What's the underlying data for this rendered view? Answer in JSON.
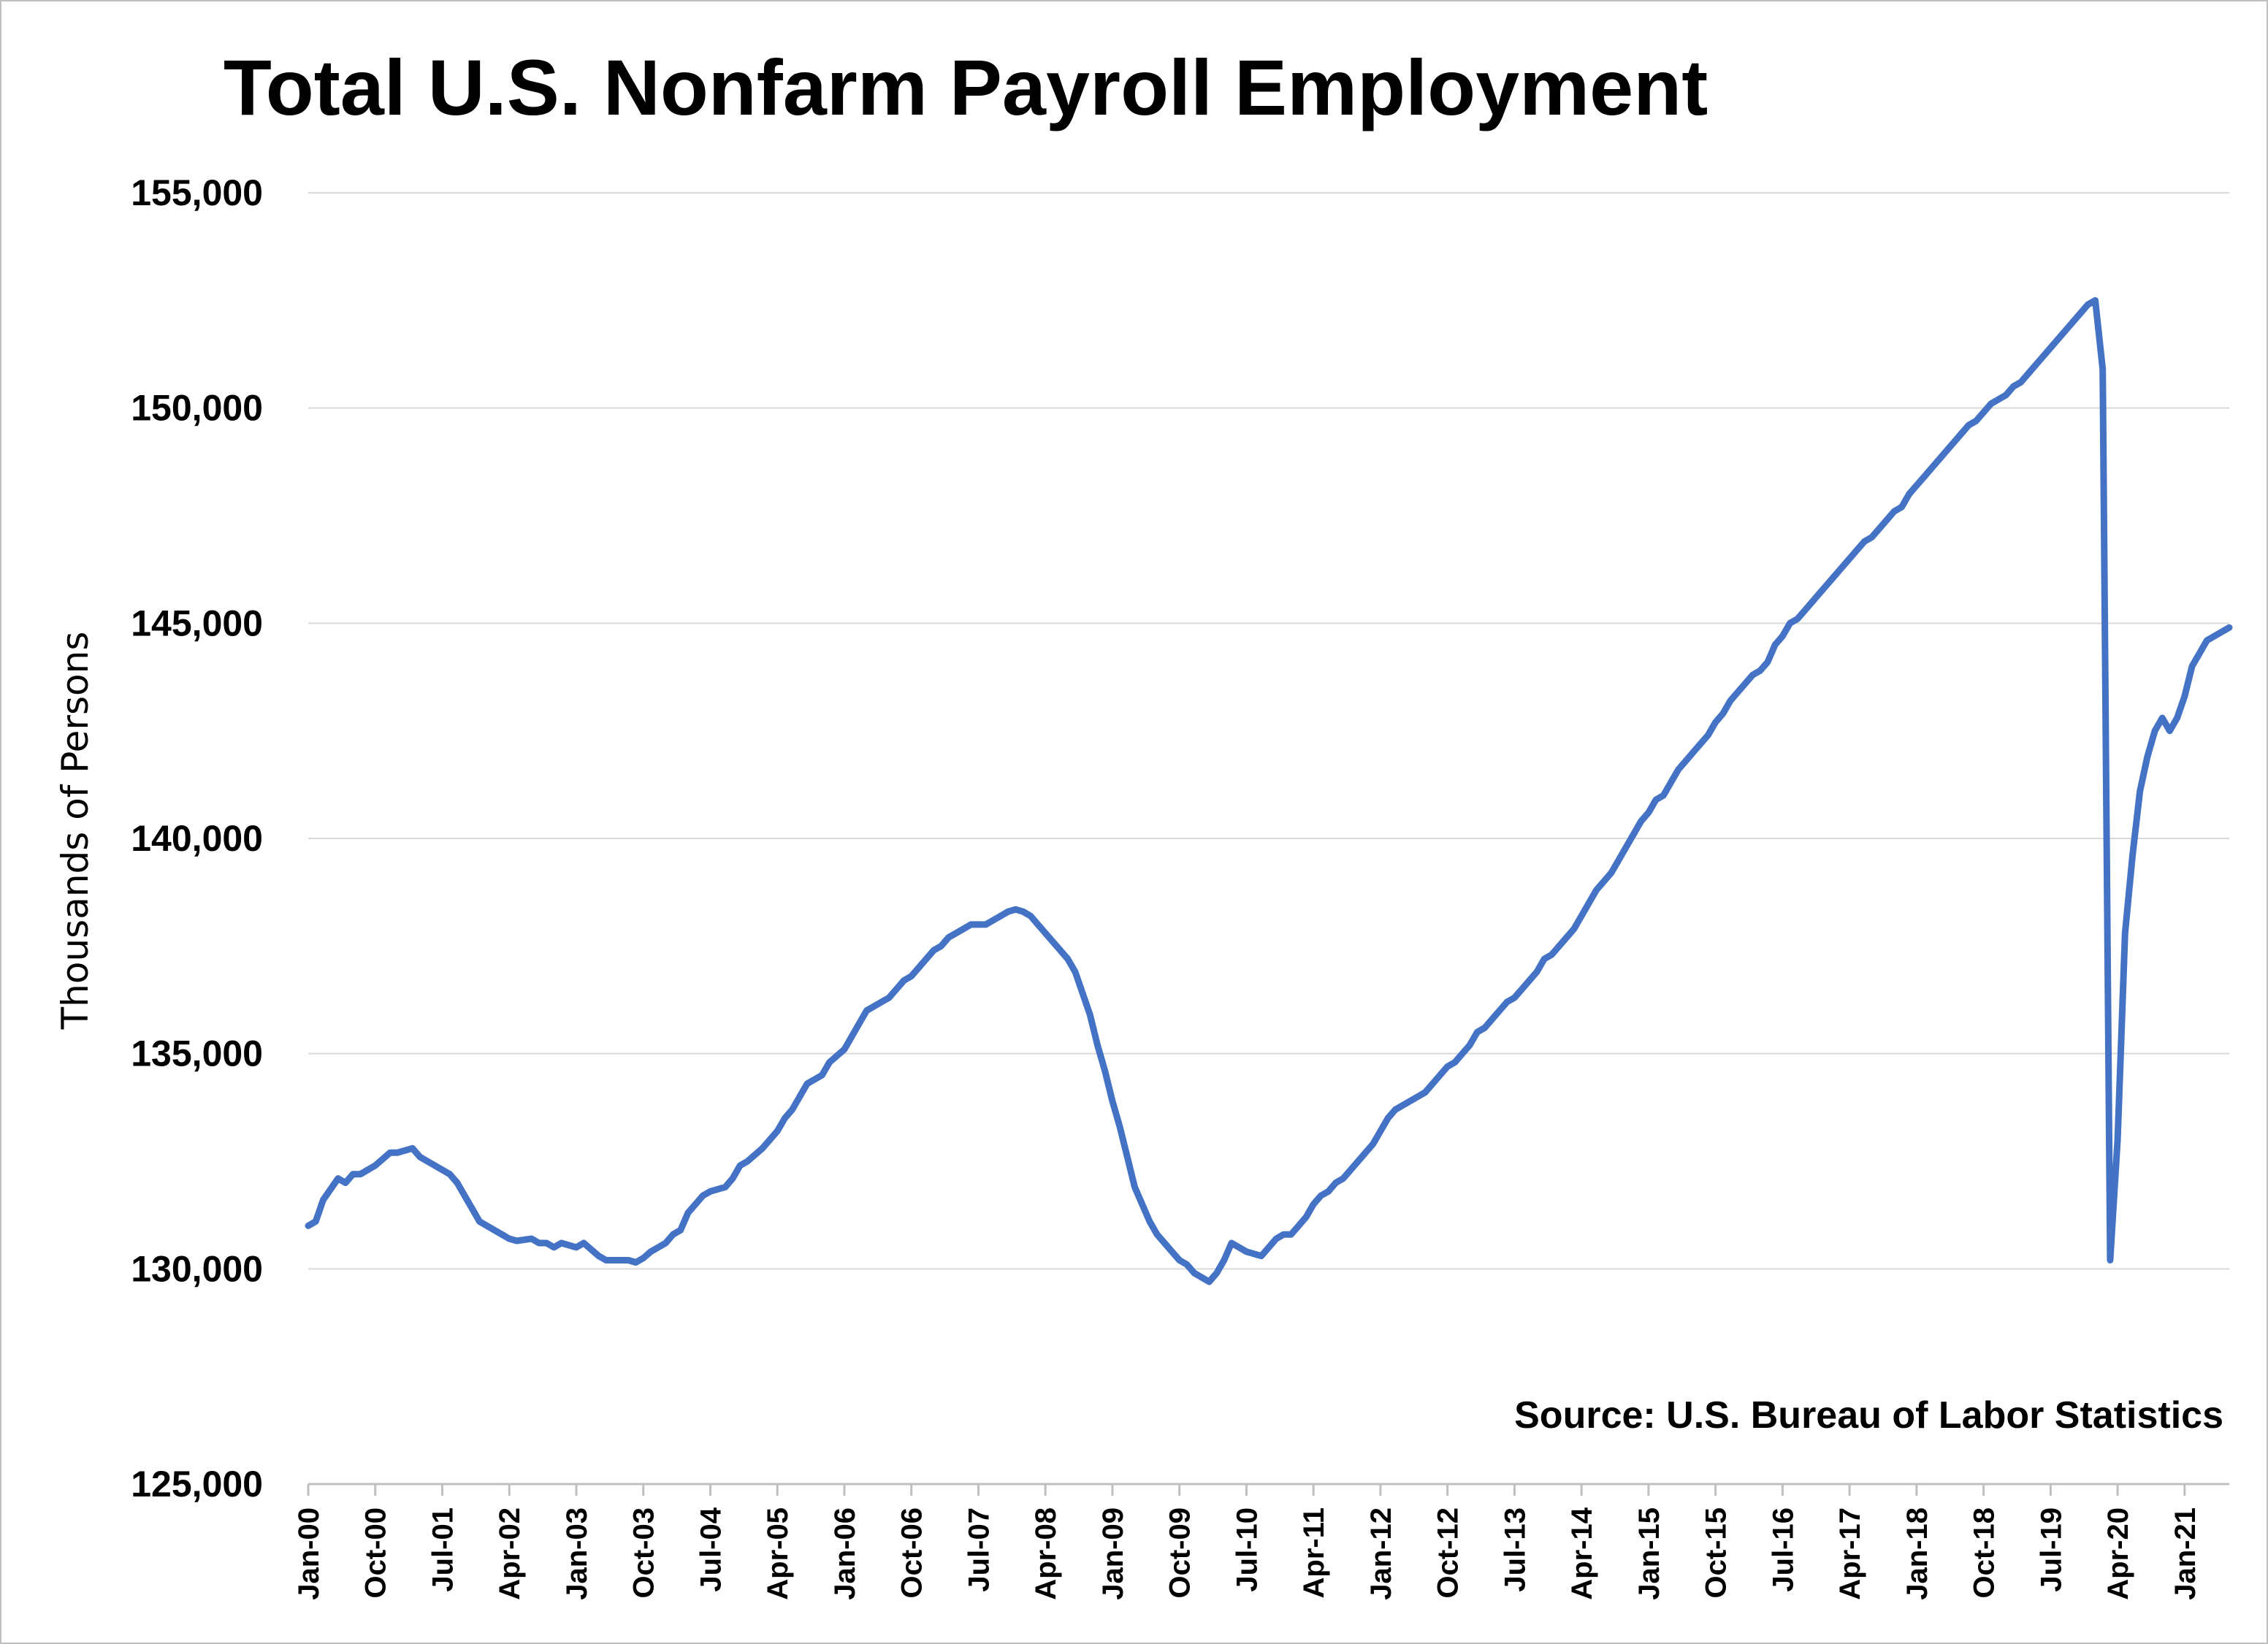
{
  "chart_data": {
    "type": "line",
    "title": "Total U.S. Nonfarm Payroll Employment",
    "ylabel": "Thousands of Persons",
    "xlabel": "",
    "source": "Source: U.S. Bureau of Labor Statistics",
    "ylim": [
      125000,
      155000
    ],
    "yticks": [
      "125,000",
      "130,000",
      "135,000",
      "140,000",
      "145,000",
      "150,000",
      "155,000"
    ],
    "ytick_values": [
      125000,
      130000,
      135000,
      140000,
      145000,
      150000,
      155000
    ],
    "xticks": [
      "Jan-00",
      "Oct-00",
      "Jul-01",
      "Apr-02",
      "Jan-03",
      "Oct-03",
      "Jul-04",
      "Apr-05",
      "Jan-06",
      "Oct-06",
      "Jul-07",
      "Apr-08",
      "Jan-09",
      "Oct-09",
      "Jul-10",
      "Apr-11",
      "Jan-12",
      "Oct-12",
      "Jul-13",
      "Apr-14",
      "Jan-15",
      "Oct-15",
      "Jul-16",
      "Apr-17",
      "Jan-18",
      "Oct-18",
      "Jul-19",
      "Apr-20",
      "Jan-21"
    ],
    "x_start": "Jan-00",
    "x_end": "Jul-21",
    "grid": true,
    "legend": "none",
    "color": "#4472c4",
    "series": [
      {
        "anchors": [
          [
            "Jan-00",
            131000
          ],
          [
            "Feb-00",
            131100
          ],
          [
            "Mar-00",
            131600
          ],
          [
            "May-00",
            132100
          ],
          [
            "Jun-00",
            132000
          ],
          [
            "Jul-00",
            132200
          ],
          [
            "Aug-00",
            132200
          ],
          [
            "Oct-00",
            132400
          ],
          [
            "Dec-00",
            132700
          ],
          [
            "Jan-01",
            132700
          ],
          [
            "Mar-01",
            132800
          ],
          [
            "Apr-01",
            132600
          ],
          [
            "May-01",
            132500
          ],
          [
            "Jun-01",
            132400
          ],
          [
            "Aug-01",
            132200
          ],
          [
            "Sep-01",
            132000
          ],
          [
            "Oct-01",
            131700
          ],
          [
            "Nov-01",
            131400
          ],
          [
            "Dec-01",
            131100
          ],
          [
            "Feb-02",
            130900
          ],
          [
            "Mar-02",
            130800
          ],
          [
            "Apr-02",
            130700
          ],
          [
            "May-02",
            130650
          ],
          [
            "Jul-02",
            130700
          ],
          [
            "Aug-02",
            130600
          ],
          [
            "Sep-02",
            130600
          ],
          [
            "Oct-02",
            130500
          ],
          [
            "Nov-02",
            130600
          ],
          [
            "Jan-03",
            130500
          ],
          [
            "Feb-03",
            130600
          ],
          [
            "Apr-03",
            130300
          ],
          [
            "May-03",
            130200
          ],
          [
            "Aug-03",
            130200
          ],
          [
            "Sep-03",
            130150
          ],
          [
            "Oct-03",
            130250
          ],
          [
            "Nov-03",
            130400
          ],
          [
            "Jan-04",
            130600
          ],
          [
            "Feb-04",
            130800
          ],
          [
            "Mar-04",
            130900
          ],
          [
            "Apr-04",
            131300
          ],
          [
            "Jun-04",
            131700
          ],
          [
            "Jul-04",
            131800
          ],
          [
            "Aug-04",
            131850
          ],
          [
            "Sep-04",
            131900
          ],
          [
            "Oct-04",
            132100
          ],
          [
            "Nov-04",
            132400
          ],
          [
            "Dec-04",
            132500
          ],
          [
            "Feb-05",
            132800
          ],
          [
            "Mar-05",
            133000
          ],
          [
            "Apr-05",
            133200
          ],
          [
            "May-05",
            133500
          ],
          [
            "Jun-05",
            133700
          ],
          [
            "Jul-05",
            134000
          ],
          [
            "Aug-05",
            134300
          ],
          [
            "Sep-05",
            134400
          ],
          [
            "Oct-05",
            134500
          ],
          [
            "Nov-05",
            134800
          ],
          [
            "Jan-06",
            135100
          ],
          [
            "Feb-06",
            135400
          ],
          [
            "Mar-06",
            135700
          ],
          [
            "Apr-06",
            136000
          ],
          [
            "May-06",
            136100
          ],
          [
            "Jun-06",
            136200
          ],
          [
            "Jul-06",
            136300
          ],
          [
            "Aug-06",
            136500
          ],
          [
            "Sep-06",
            136700
          ],
          [
            "Oct-06",
            136800
          ],
          [
            "Nov-06",
            137000
          ],
          [
            "Dec-06",
            137200
          ],
          [
            "Jan-07",
            137400
          ],
          [
            "Feb-07",
            137500
          ],
          [
            "Mar-07",
            137700
          ],
          [
            "Apr-07",
            137800
          ],
          [
            "May-07",
            137900
          ],
          [
            "Jun-07",
            138000
          ],
          [
            "Aug-07",
            138000
          ],
          [
            "Sep-07",
            138100
          ],
          [
            "Oct-07",
            138200
          ],
          [
            "Nov-07",
            138300
          ],
          [
            "Dec-07",
            138350
          ],
          [
            "Jan-08",
            138300
          ],
          [
            "Feb-08",
            138200
          ],
          [
            "Mar-08",
            138000
          ],
          [
            "Apr-08",
            137800
          ],
          [
            "May-08",
            137600
          ],
          [
            "Jun-08",
            137400
          ],
          [
            "Jul-08",
            137200
          ],
          [
            "Aug-08",
            136900
          ],
          [
            "Sep-08",
            136400
          ],
          [
            "Oct-08",
            135900
          ],
          [
            "Nov-08",
            135200
          ],
          [
            "Dec-08",
            134600
          ],
          [
            "Jan-09",
            133900
          ],
          [
            "Feb-09",
            133300
          ],
          [
            "Mar-09",
            132600
          ],
          [
            "Apr-09",
            131900
          ],
          [
            "May-09",
            131500
          ],
          [
            "Jun-09",
            131100
          ],
          [
            "Jul-09",
            130800
          ],
          [
            "Aug-09",
            130600
          ],
          [
            "Sep-09",
            130400
          ],
          [
            "Oct-09",
            130200
          ],
          [
            "Nov-09",
            130100
          ],
          [
            "Dec-09",
            129900
          ],
          [
            "Jan-10",
            129800
          ],
          [
            "Feb-10",
            129700
          ],
          [
            "Mar-10",
            129900
          ],
          [
            "Apr-10",
            130200
          ],
          [
            "May-10",
            130600
          ],
          [
            "Jun-10",
            130500
          ],
          [
            "Jul-10",
            130400
          ],
          [
            "Sep-10",
            130300
          ],
          [
            "Oct-10",
            130500
          ],
          [
            "Nov-10",
            130700
          ],
          [
            "Dec-10",
            130800
          ],
          [
            "Jan-11",
            130800
          ],
          [
            "Feb-11",
            131000
          ],
          [
            "Mar-11",
            131200
          ],
          [
            "Apr-11",
            131500
          ],
          [
            "May-11",
            131700
          ],
          [
            "Jun-11",
            131800
          ],
          [
            "Jul-11",
            132000
          ],
          [
            "Aug-11",
            132100
          ],
          [
            "Sep-11",
            132300
          ],
          [
            "Oct-11",
            132500
          ],
          [
            "Nov-11",
            132700
          ],
          [
            "Dec-11",
            132900
          ],
          [
            "Jan-12",
            133200
          ],
          [
            "Feb-12",
            133500
          ],
          [
            "Mar-12",
            133700
          ],
          [
            "Apr-12",
            133800
          ],
          [
            "May-12",
            133900
          ],
          [
            "Jun-12",
            134000
          ],
          [
            "Jul-12",
            134100
          ],
          [
            "Aug-12",
            134300
          ],
          [
            "Sep-12",
            134500
          ],
          [
            "Oct-12",
            134700
          ],
          [
            "Nov-12",
            134800
          ],
          [
            "Dec-12",
            135000
          ],
          [
            "Jan-13",
            135200
          ],
          [
            "Feb-13",
            135500
          ],
          [
            "Mar-13",
            135600
          ],
          [
            "Apr-13",
            135800
          ],
          [
            "May-13",
            136000
          ],
          [
            "Jun-13",
            136200
          ],
          [
            "Jul-13",
            136300
          ],
          [
            "Aug-13",
            136500
          ],
          [
            "Sep-13",
            136700
          ],
          [
            "Oct-13",
            136900
          ],
          [
            "Nov-13",
            137200
          ],
          [
            "Dec-13",
            137300
          ],
          [
            "Jan-14",
            137500
          ],
          [
            "Feb-14",
            137700
          ],
          [
            "Mar-14",
            137900
          ],
          [
            "Apr-14",
            138200
          ],
          [
            "May-14",
            138500
          ],
          [
            "Jun-14",
            138800
          ],
          [
            "Jul-14",
            139000
          ],
          [
            "Aug-14",
            139200
          ],
          [
            "Sep-14",
            139500
          ],
          [
            "Oct-14",
            139800
          ],
          [
            "Nov-14",
            140100
          ],
          [
            "Dec-14",
            140400
          ],
          [
            "Jan-15",
            140600
          ],
          [
            "Feb-15",
            140900
          ],
          [
            "Mar-15",
            141000
          ],
          [
            "Apr-15",
            141300
          ],
          [
            "May-15",
            141600
          ],
          [
            "Jun-15",
            141800
          ],
          [
            "Jul-15",
            142000
          ],
          [
            "Aug-15",
            142200
          ],
          [
            "Sep-15",
            142400
          ],
          [
            "Oct-15",
            142700
          ],
          [
            "Nov-15",
            142900
          ],
          [
            "Dec-15",
            143200
          ],
          [
            "Jan-16",
            143400
          ],
          [
            "Feb-16",
            143600
          ],
          [
            "Mar-16",
            143800
          ],
          [
            "Apr-16",
            143900
          ],
          [
            "May-16",
            144100
          ],
          [
            "Jun-16",
            144500
          ],
          [
            "Jul-16",
            144700
          ],
          [
            "Aug-16",
            145000
          ],
          [
            "Sep-16",
            145100
          ],
          [
            "Oct-16",
            145300
          ],
          [
            "Nov-16",
            145500
          ],
          [
            "Dec-16",
            145700
          ],
          [
            "Jan-17",
            145900
          ],
          [
            "Feb-17",
            146100
          ],
          [
            "Mar-17",
            146300
          ],
          [
            "Apr-17",
            146500
          ],
          [
            "May-17",
            146700
          ],
          [
            "Jun-17",
            146900
          ],
          [
            "Jul-17",
            147000
          ],
          [
            "Aug-17",
            147200
          ],
          [
            "Sep-17",
            147400
          ],
          [
            "Oct-17",
            147600
          ],
          [
            "Nov-17",
            147700
          ],
          [
            "Dec-17",
            148000
          ],
          [
            "Jan-18",
            148200
          ],
          [
            "Feb-18",
            148400
          ],
          [
            "Mar-18",
            148600
          ],
          [
            "Apr-18",
            148800
          ],
          [
            "May-18",
            149000
          ],
          [
            "Jun-18",
            149200
          ],
          [
            "Jul-18",
            149400
          ],
          [
            "Aug-18",
            149600
          ],
          [
            "Sep-18",
            149700
          ],
          [
            "Oct-18",
            149900
          ],
          [
            "Nov-18",
            150100
          ],
          [
            "Dec-18",
            150200
          ],
          [
            "Jan-19",
            150300
          ],
          [
            "Feb-19",
            150500
          ],
          [
            "Mar-19",
            150600
          ],
          [
            "Apr-19",
            150800
          ],
          [
            "May-19",
            151000
          ],
          [
            "Jun-19",
            151200
          ],
          [
            "Jul-19",
            151400
          ],
          [
            "Aug-19",
            151600
          ],
          [
            "Sep-19",
            151800
          ],
          [
            "Oct-19",
            152000
          ],
          [
            "Nov-19",
            152200
          ],
          [
            "Dec-19",
            152400
          ],
          [
            "Jan-20",
            152500
          ],
          [
            "Feb-20",
            150900
          ],
          [
            "Mar-20",
            130200
          ],
          [
            "Apr-20",
            133000
          ],
          [
            "May-20",
            137800
          ],
          [
            "Jun-20",
            139600
          ],
          [
            "Jul-20",
            141100
          ],
          [
            "Aug-20",
            141900
          ],
          [
            "Sep-20",
            142500
          ],
          [
            "Oct-20",
            142800
          ],
          [
            "Nov-20",
            142500
          ],
          [
            "Dec-20",
            142800
          ],
          [
            "Jan-21",
            143300
          ],
          [
            "Feb-21",
            144000
          ],
          [
            "Mar-21",
            144300
          ],
          [
            "Apr-21",
            144600
          ],
          [
            "Jul-21",
            144900
          ]
        ]
      }
    ]
  }
}
